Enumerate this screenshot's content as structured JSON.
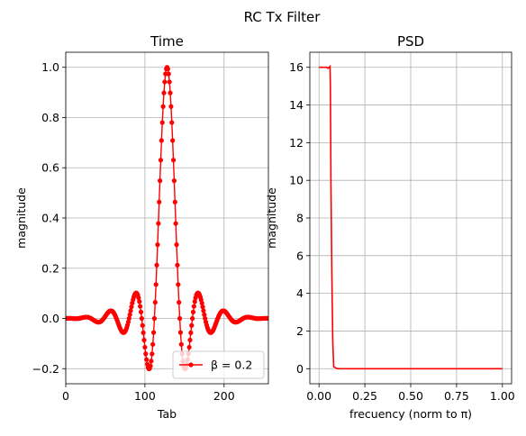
{
  "figure": {
    "suptitle": "RC Tx Filter"
  },
  "chart_data": [
    {
      "type": "line",
      "title": "Time",
      "xlabel": "Tab",
      "ylabel": "magnitude",
      "xlim": [
        0,
        256
      ],
      "ylim": [
        -0.26,
        1.06
      ],
      "xticks": [
        0,
        100,
        200
      ],
      "xtick_labels": [
        "0",
        "100",
        "200"
      ],
      "yticks": [
        -0.2,
        0.0,
        0.2,
        0.4,
        0.6,
        0.8,
        1.0
      ],
      "ytick_labels": [
        "−0.2",
        "0.0",
        "0.2",
        "0.4",
        "0.6",
        "0.8",
        "1.0"
      ],
      "grid": true,
      "legend_position": "lower-right",
      "color": "#ff0000",
      "marker": "dot",
      "series": [
        {
          "name": "β = 0.2",
          "model": "raised-cosine impulse",
          "center": 128,
          "symbol_period": 16,
          "rolloff": 0.2,
          "x_start": 0,
          "x_end": 256
        }
      ]
    },
    {
      "type": "line",
      "title": "PSD",
      "xlabel": "frecuency (norm to π)",
      "ylabel": "magnitude",
      "xlim": [
        -0.05,
        1.05
      ],
      "ylim": [
        -0.8,
        16.8
      ],
      "xticks": [
        0.0,
        0.25,
        0.5,
        0.75,
        1.0
      ],
      "xtick_labels": [
        "0.00",
        "0.25",
        "0.50",
        "0.75",
        "1.00"
      ],
      "yticks": [
        0,
        2,
        4,
        6,
        8,
        10,
        12,
        14,
        16
      ],
      "ytick_labels": [
        "0",
        "2",
        "4",
        "6",
        "8",
        "10",
        "12",
        "14",
        "16"
      ],
      "grid": true,
      "color": "#ff0000",
      "series": [
        {
          "x": [
            0.0,
            0.02,
            0.04,
            0.05,
            0.06,
            0.062,
            0.065,
            0.07,
            0.075,
            0.08,
            0.1,
            0.2,
            0.4,
            0.6,
            0.8,
            1.0
          ],
          "y": [
            16.0,
            16.0,
            16.0,
            15.95,
            16.05,
            15.0,
            10.0,
            5.0,
            1.5,
            0.1,
            0.0,
            0.0,
            0.0,
            0.0,
            0.0,
            0.0
          ]
        }
      ]
    }
  ]
}
